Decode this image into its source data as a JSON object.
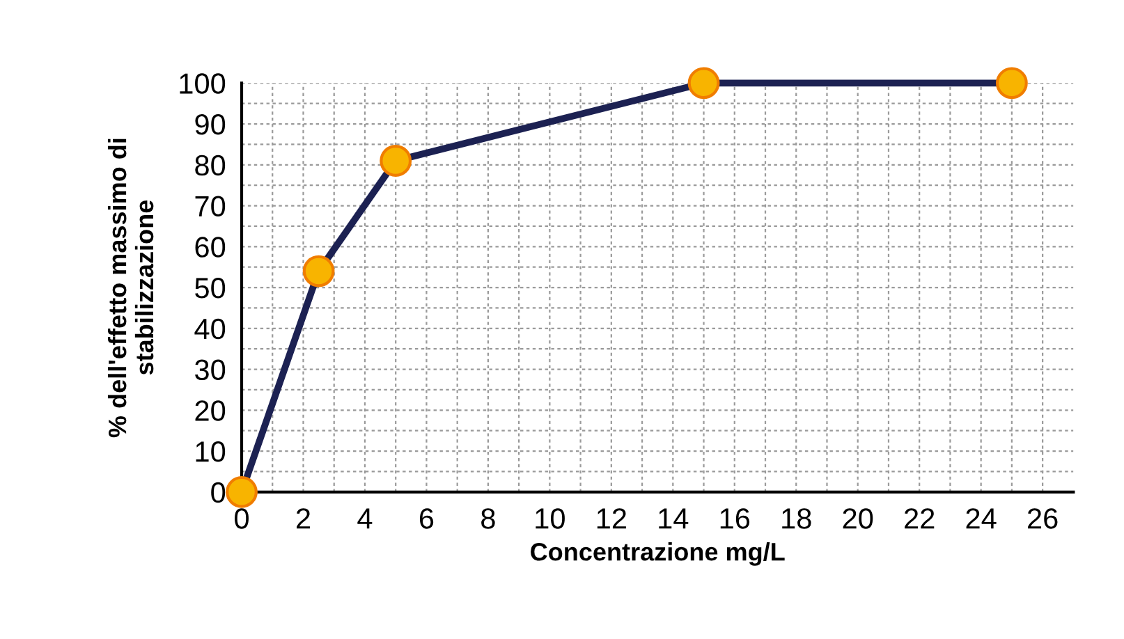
{
  "chart_data": {
    "type": "line",
    "xlabel": "Concentrazione mg/L",
    "ylabel": "% dell'effetto massimo di\nstabilizzazione",
    "x": [
      0,
      2.5,
      5,
      15,
      25
    ],
    "series": [
      {
        "color": "#1c2152",
        "values": [
          0,
          54,
          81,
          100,
          100
        ]
      }
    ],
    "marker": "circle",
    "line_style": "solid",
    "grid": true,
    "xlim": [
      0,
      27
    ],
    "ylim": [
      0,
      100
    ],
    "xticks": [
      0,
      {
        "value": 1,
        "label": null
      },
      2,
      {
        "value": 3,
        "label": null
      },
      4,
      {
        "value": 5,
        "label": null
      },
      6,
      {
        "value": 7,
        "label": null
      },
      8,
      {
        "value": 9,
        "label": null
      },
      10,
      {
        "value": 11,
        "label": null
      },
      12,
      {
        "value": 13,
        "label": null
      },
      14,
      {
        "value": 15,
        "label": null
      },
      16,
      {
        "value": 17,
        "label": null
      },
      18,
      {
        "value": 19,
        "label": null
      },
      20,
      {
        "value": 21,
        "label": null
      },
      22,
      {
        "value": 23,
        "label": null
      },
      24,
      {
        "value": 25,
        "label": null
      },
      26
    ],
    "yticks": [
      0,
      {
        "value": 5,
        "label": null
      },
      10,
      {
        "value": 15,
        "label": null
      },
      20,
      {
        "value": 25,
        "label": null
      },
      30,
      {
        "value": 35,
        "label": null
      },
      40,
      {
        "value": 45,
        "label": null
      },
      50,
      {
        "value": 55,
        "label": null
      },
      60,
      {
        "value": 65,
        "label": null
      },
      70,
      {
        "value": 75,
        "label": null
      },
      80,
      {
        "value": 85,
        "label": null
      },
      90,
      {
        "value": 95,
        "label": null
      },
      100
    ]
  }
}
